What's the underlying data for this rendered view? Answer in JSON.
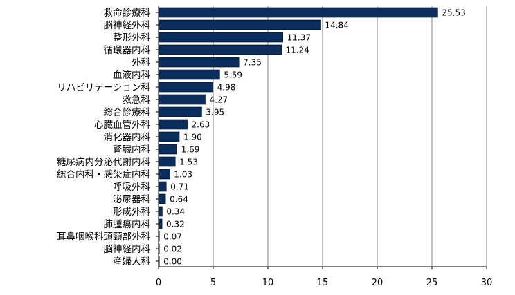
{
  "chart_data": {
    "type": "bar",
    "orientation": "horizontal",
    "title": "",
    "xlabel": "",
    "ylabel": "",
    "xlim": [
      0,
      30
    ],
    "xticks": [
      0,
      5,
      10,
      15,
      20,
      25,
      30
    ],
    "grid": "vertical",
    "legend": "none",
    "bar_color": "#0a2d5e",
    "categories": [
      "救命診療科",
      "脳神経外科",
      "整形外科",
      "循環器内科",
      "外科",
      "血液内科",
      "リハビリテーション科",
      "救急科",
      "総合診療科",
      "心臓血管外科",
      "消化器内科",
      "腎臓内科",
      "糖尿病内分泌代謝内科",
      "総合内科・感染症内科",
      "呼吸外科",
      "泌尿器科",
      "形成外科",
      "肺腫瘍内科",
      "耳鼻咽喉科頭頸部外科",
      "脳神経内科",
      "産婦人科"
    ],
    "values": [
      25.53,
      14.84,
      11.37,
      11.24,
      7.35,
      5.59,
      4.98,
      4.27,
      3.95,
      2.63,
      1.9,
      1.69,
      1.53,
      1.03,
      0.71,
      0.64,
      0.34,
      0.32,
      0.07,
      0.02,
      0.0
    ],
    "value_labels": [
      "25.53",
      "14.84",
      "11.37",
      "11.24",
      "7.35",
      "5.59",
      "4.98",
      "4.27",
      "3.95",
      "2.63",
      "1.90",
      "1.69",
      "1.53",
      "1.03",
      "0.71",
      "0.64",
      "0.34",
      "0.32",
      "0.07",
      "0.02",
      "0.00"
    ],
    "xtick_labels": [
      "0",
      "5",
      "10",
      "15",
      "20",
      "25",
      "30"
    ]
  }
}
